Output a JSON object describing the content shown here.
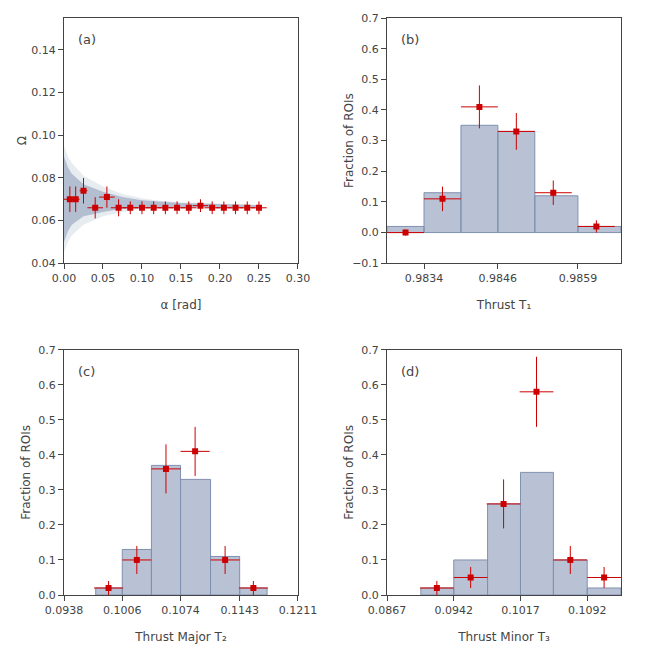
{
  "chart_data": [
    {
      "type": "scatter",
      "annotation": "(a)",
      "xlabel": "α [rad]",
      "ylabel": "Ω",
      "xlim": [
        0.0,
        0.3
      ],
      "ylim": [
        0.04,
        0.155
      ],
      "xticks": [
        {
          "value": 0.0,
          "label": "0.00"
        },
        0.05,
        {
          "value": 0.1,
          "label": "0.10"
        },
        0.15,
        {
          "value": 0.2,
          "label": "0.20"
        },
        0.25,
        {
          "value": 0.3,
          "label": "0.30"
        }
      ],
      "yticks": [
        0.04,
        0.06,
        0.08,
        {
          "value": 0.1,
          "label": "0.10"
        },
        0.12,
        0.14
      ],
      "grid": false,
      "series": [
        {
          "type": "band",
          "color": "#b0c0d0",
          "x": [
            0.0,
            0.005,
            0.01,
            0.025,
            0.05,
            0.075,
            0.1,
            0.125,
            0.15,
            0.175,
            0.2,
            0.225,
            0.25
          ],
          "lower": [
            0.045,
            0.05,
            0.053,
            0.058,
            0.062,
            0.064,
            0.0655,
            0.0659,
            0.0661,
            0.0662,
            0.0663,
            0.0663,
            0.0663
          ],
          "upper": [
            0.095,
            0.09,
            0.087,
            0.081,
            0.076,
            0.0725,
            0.0705,
            0.0692,
            0.0686,
            0.0682,
            0.0678,
            0.0676,
            0.0674
          ]
        },
        {
          "type": "band",
          "color": "#8090b0",
          "x": [
            0.0,
            0.005,
            0.01,
            0.025,
            0.05,
            0.075,
            0.1,
            0.125,
            0.15,
            0.175,
            0.2,
            0.225,
            0.25
          ],
          "lower": [
            0.05,
            0.055,
            0.058,
            0.062,
            0.064,
            0.0655,
            0.066,
            0.0662,
            0.0663,
            0.0664,
            0.0664,
            0.0664,
            0.0664
          ],
          "upper": [
            0.09,
            0.085,
            0.082,
            0.077,
            0.0735,
            0.071,
            0.0695,
            0.0688,
            0.0683,
            0.068,
            0.0677,
            0.0675,
            0.0673
          ]
        },
        {
          "type": "scatter",
          "marker": "square",
          "color": "#cc0000",
          "x": [
            0.0075,
            0.015,
            0.025,
            0.04,
            0.055,
            0.07,
            0.085,
            0.1,
            0.115,
            0.13,
            0.145,
            0.16,
            0.175,
            0.19,
            0.205,
            0.22,
            0.235,
            0.25
          ],
          "values": [
            0.07,
            0.07,
            0.074,
            0.066,
            0.071,
            0.066,
            0.066,
            0.066,
            0.066,
            0.066,
            0.066,
            0.066,
            0.067,
            0.066,
            0.066,
            0.066,
            0.066,
            0.066
          ],
          "xerr": [
            0.0075,
            0.005,
            0.005,
            0.01,
            0.01,
            0.01,
            0.01,
            0.01,
            0.01,
            0.01,
            0.01,
            0.01,
            0.01,
            0.01,
            0.01,
            0.01,
            0.01,
            0.01
          ],
          "yerr": [
            0.006,
            0.006,
            0.006,
            0.005,
            0.005,
            0.004,
            0.003,
            0.003,
            0.003,
            0.003,
            0.003,
            0.003,
            0.003,
            0.003,
            0.003,
            0.003,
            0.003,
            0.003
          ]
        }
      ]
    },
    {
      "type": "histogram",
      "annotation": "(b)",
      "xlabel": "Thrust T₁",
      "ylabel": "Fraction of ROIs",
      "xlim": [
        0.9828,
        0.9866
      ],
      "ylim": [
        -0.1,
        0.7
      ],
      "xticks": [
        0.9834,
        0.9846,
        0.9859
      ],
      "yticks": [
        {
          "value": -0.1,
          "label": "−0.1"
        },
        {
          "value": 0.0,
          "label": "0.0"
        },
        0.1,
        0.2,
        0.3,
        0.4,
        0.5,
        0.6,
        0.7
      ],
      "grid": false,
      "series": [
        {
          "type": "histogram",
          "color": "#8090b0",
          "bins": [
            0.9828,
            0.9834,
            0.984,
            0.9846,
            0.9852,
            0.9859,
            0.9866
          ],
          "values": [
            0.02,
            0.13,
            0.35,
            0.33,
            0.12,
            0.02
          ]
        },
        {
          "type": "scatter",
          "marker": "square",
          "color": "#cc0000",
          "x": [
            0.9831,
            0.9837,
            0.9843,
            0.9849,
            0.9855,
            0.9862
          ],
          "values": [
            0.0,
            0.11,
            0.41,
            0.33,
            0.13,
            0.02
          ],
          "xerr": [
            0.0003,
            0.0003,
            0.0003,
            0.0003,
            0.0003,
            0.0003
          ],
          "yerr": [
            0.01,
            0.04,
            0.07,
            0.06,
            0.04,
            0.02
          ]
        }
      ]
    },
    {
      "type": "histogram",
      "annotation": "(c)",
      "xlabel": "Thrust Major T₂",
      "ylabel": "Fraction of ROIs",
      "xlim": [
        0.0938,
        0.1211
      ],
      "ylim": [
        0.0,
        0.7
      ],
      "xticks": [
        0.0938,
        0.1006,
        0.1074,
        0.1143,
        0.1211
      ],
      "yticks": [
        {
          "value": 0.0,
          "label": "0.0"
        },
        0.1,
        0.2,
        0.3,
        0.4,
        0.5,
        0.6,
        0.7
      ],
      "grid": false,
      "series": [
        {
          "type": "histogram",
          "color": "#8090b0",
          "bins": [
            0.0975,
            0.1006,
            0.104,
            0.1074,
            0.1109,
            0.1143,
            0.1175
          ],
          "values": [
            0.02,
            0.13,
            0.37,
            0.33,
            0.11,
            0.02
          ]
        },
        {
          "type": "scatter",
          "marker": "square",
          "color": "#cc0000",
          "x": [
            0.099,
            0.1023,
            0.1057,
            0.1091,
            0.1126,
            0.1159
          ],
          "values": [
            0.02,
            0.1,
            0.36,
            0.41,
            0.1,
            0.02
          ],
          "xerr": [
            0.0017,
            0.0017,
            0.0017,
            0.0017,
            0.0017,
            0.0017
          ],
          "yerr": [
            0.02,
            0.04,
            0.07,
            0.07,
            0.04,
            0.02
          ]
        }
      ]
    },
    {
      "type": "histogram",
      "annotation": "(d)",
      "xlabel": "Thrust Minor T₃",
      "ylabel": "Fraction of ROIs",
      "xlim": [
        0.0867,
        0.113
      ],
      "ylim": [
        0.0,
        0.7
      ],
      "xticks": [
        0.0867,
        0.0942,
        0.1017,
        0.1092
      ],
      "yticks": [
        {
          "value": 0.0,
          "label": "0.0"
        },
        0.1,
        0.2,
        0.3,
        0.4,
        0.5,
        0.6,
        0.7
      ],
      "grid": false,
      "series": [
        {
          "type": "histogram",
          "color": "#8090b0",
          "bins": [
            0.0905,
            0.0942,
            0.098,
            0.1017,
            0.1054,
            0.1092,
            0.113
          ],
          "values": [
            0.02,
            0.1,
            0.26,
            0.35,
            0.1,
            0.02
          ]
        },
        {
          "type": "scatter",
          "marker": "square",
          "color": "#cc0000",
          "x": [
            0.0923,
            0.0961,
            0.0998,
            0.1035,
            0.1073,
            0.1111
          ],
          "values": [
            0.02,
            0.05,
            0.26,
            0.58,
            0.1,
            0.05
          ],
          "xerr": [
            0.0019,
            0.0019,
            0.0019,
            0.0019,
            0.0019,
            0.0019
          ],
          "yerr": [
            0.02,
            0.03,
            0.07,
            0.1,
            0.04,
            0.03
          ]
        }
      ]
    }
  ]
}
